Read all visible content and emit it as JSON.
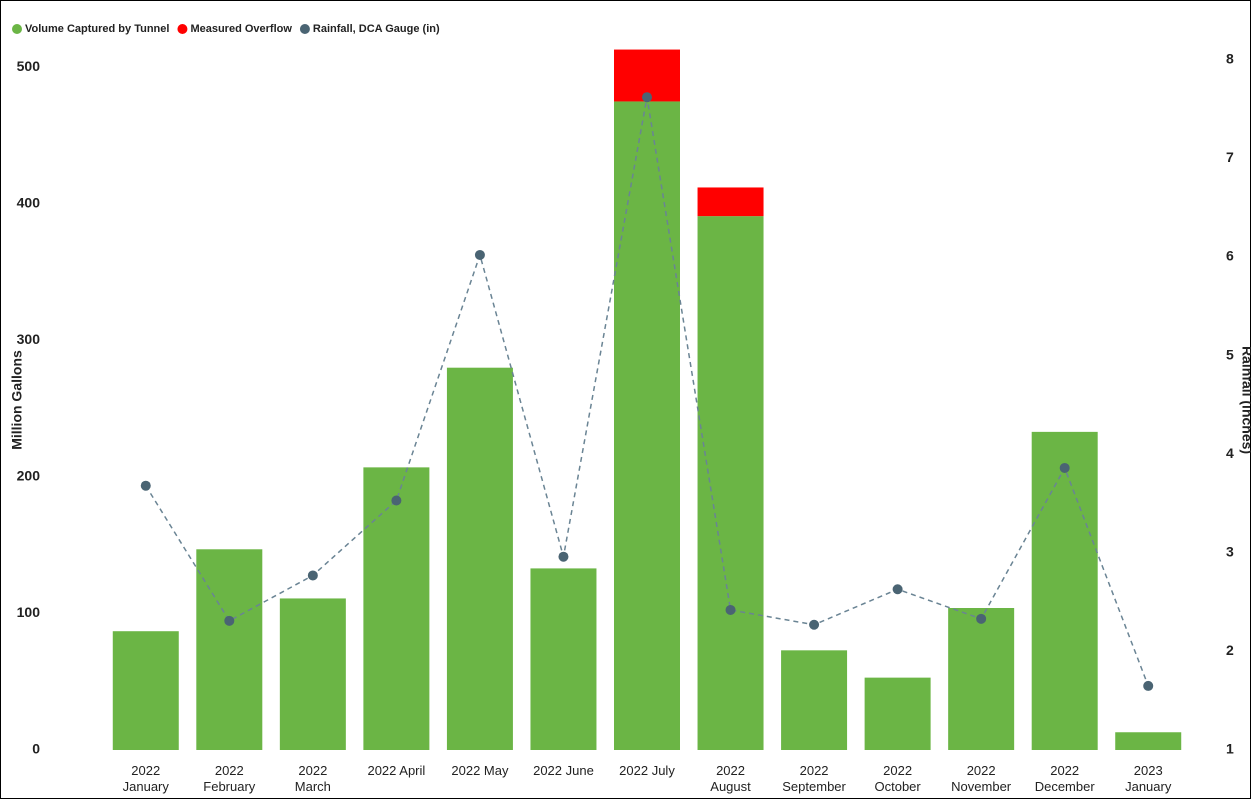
{
  "chart_data": {
    "type": "bar",
    "categories": [
      "2022\nJanuary",
      "2022\nFebruary",
      "2022\nMarch",
      "2022 April",
      "2022 May",
      "2022 June",
      "2022 July",
      "2022\nAugust",
      "2022\nSeptember",
      "2022\nOctober",
      "2022\nNovember",
      "2022\nDecember",
      "2023\nJanuary"
    ],
    "series": [
      {
        "name": "Volume Captured by Tunnel",
        "color": "#6bb545",
        "values": [
          87,
          147,
          111,
          207,
          280,
          133,
          475,
          391,
          73,
          53,
          104,
          233,
          13
        ]
      },
      {
        "name": "Measured Overflow",
        "color": "#ff0000",
        "values": [
          0,
          0,
          0,
          0,
          0,
          0,
          38,
          21,
          0,
          0,
          0,
          0,
          0
        ]
      },
      {
        "name": "Rainfall, DCA Gauge (in)",
        "color": "#4a6473",
        "axis": "y2",
        "type": "line",
        "values": [
          3.68,
          2.31,
          2.77,
          3.53,
          6.02,
          2.96,
          7.62,
          2.42,
          2.27,
          2.63,
          2.33,
          3.86,
          1.65
        ]
      }
    ],
    "ylabel": "Million Gallons",
    "y2label": "Rainfall (inches)",
    "ylim": [
      0,
      520
    ],
    "yticks": [
      0,
      100,
      200,
      300,
      400,
      500
    ],
    "y2lim": [
      1,
      8.2
    ],
    "y2ticks": [
      1,
      2,
      3,
      4,
      5,
      6,
      7,
      8
    ],
    "stacked": true,
    "legend": "top-left"
  }
}
